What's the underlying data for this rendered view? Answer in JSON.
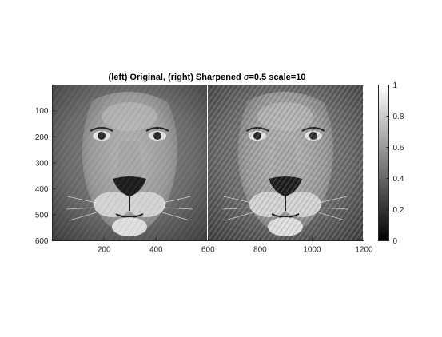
{
  "chart_data": {
    "type": "heatmap",
    "title_prefix": "(left) Original, (right) Sharpened ",
    "title_symbol": "σ",
    "title_suffix": "=0.5 scale=10",
    "xlim": [
      1,
      1200
    ],
    "ylim": [
      1,
      600
    ],
    "x_reverse": false,
    "y_reverse": true,
    "x_ticks": [
      200,
      400,
      600,
      800,
      1000,
      1200
    ],
    "y_ticks": [
      100,
      200,
      300,
      400,
      500,
      600
    ],
    "colormap": "gray",
    "colorbar": {
      "range": [
        0,
        1
      ],
      "ticks": [
        0,
        0.2,
        0.4,
        0.6,
        0.8,
        1
      ],
      "tick_labels": [
        "0",
        "0.2",
        "0.4",
        "0.6",
        "0.8",
        "1"
      ]
    },
    "panels": [
      {
        "content": "grayscale lion face photograph",
        "x_range": [
          1,
          600
        ]
      },
      {
        "content": "grayscale lion face photograph, sharpened",
        "x_range": [
          601,
          1200
        ]
      }
    ],
    "grid": false
  }
}
